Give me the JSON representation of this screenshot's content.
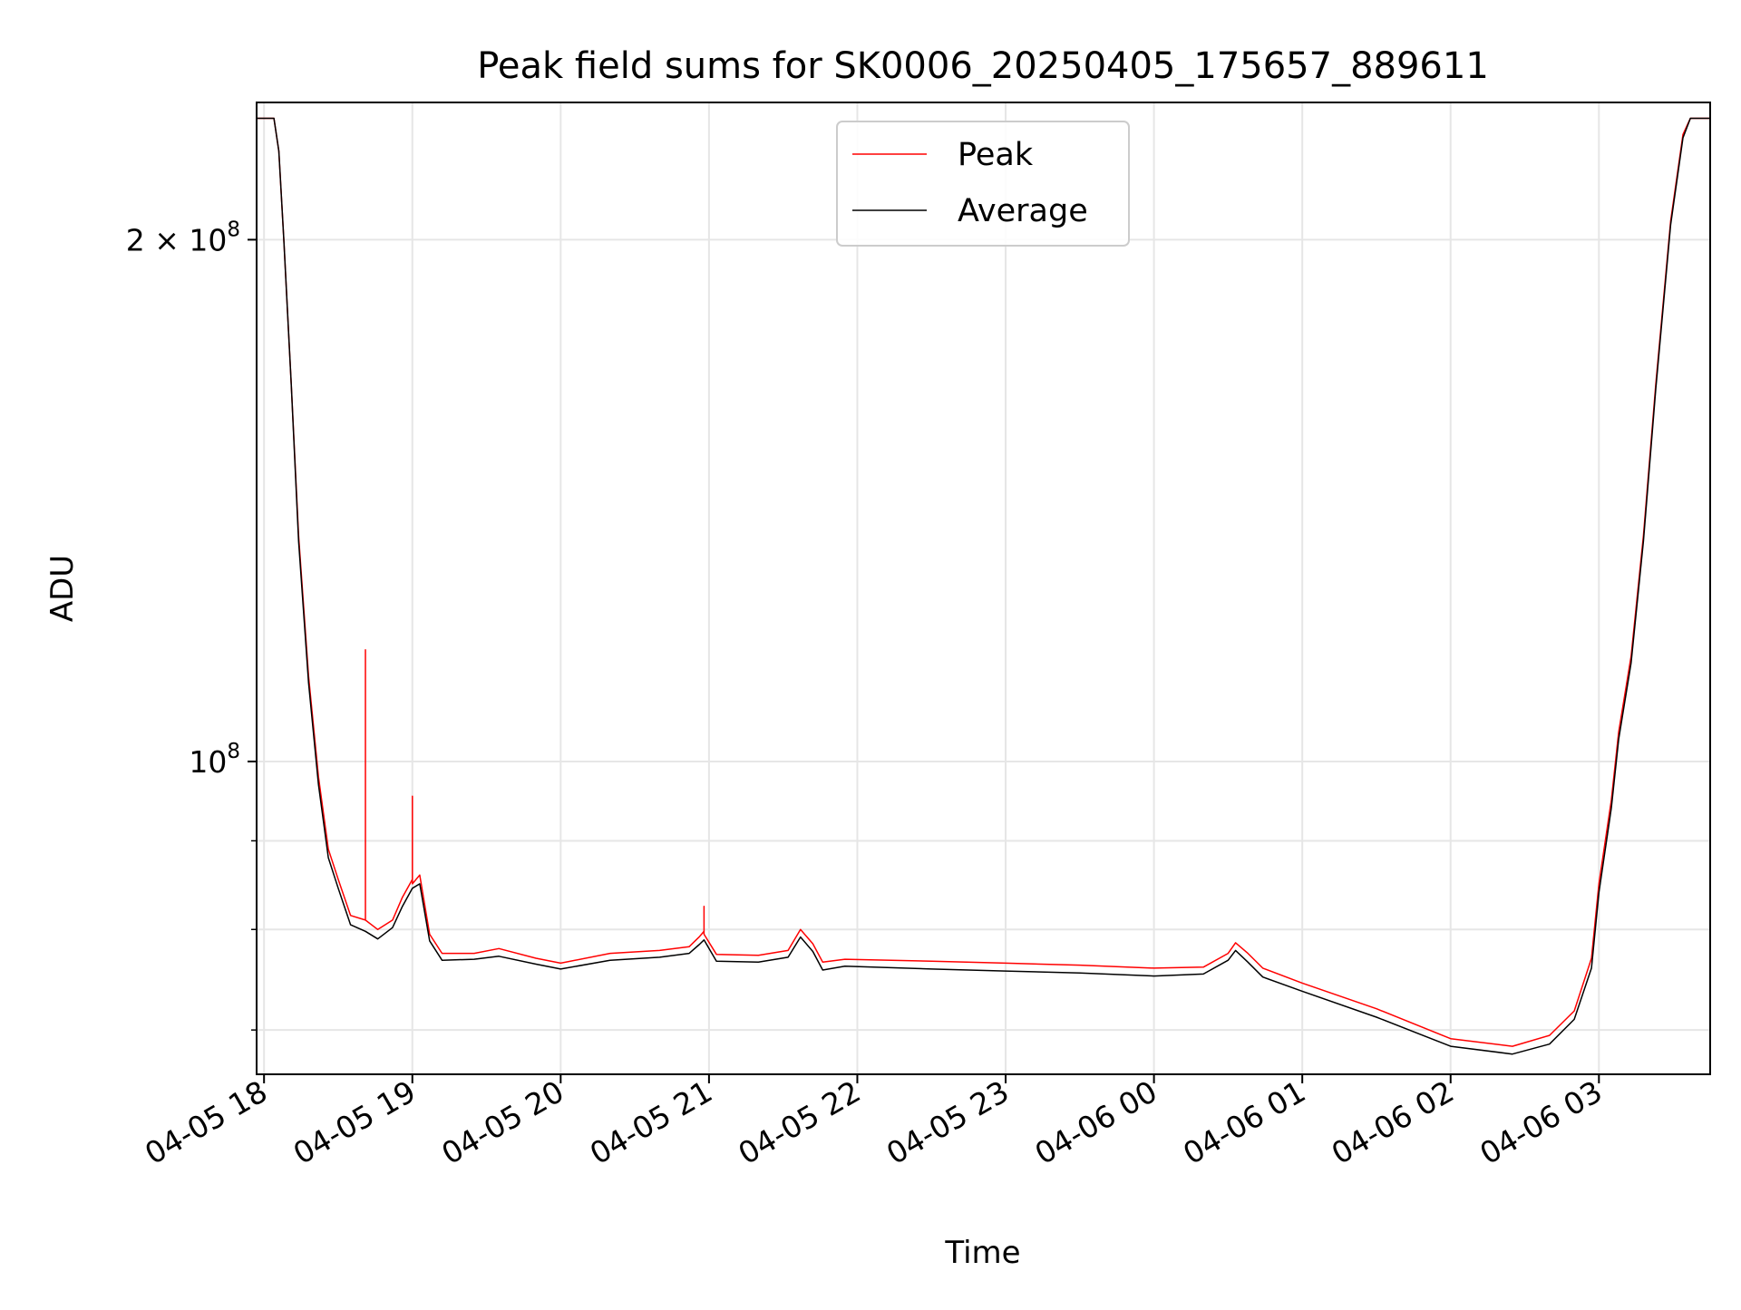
{
  "chart_data": {
    "type": "line",
    "title": "Peak field sums for SK0006_20250405_175657_889611",
    "xlabel": "Time",
    "ylabel": "ADU",
    "y_scale": "log",
    "grid": true,
    "legend_placement": "upper center",
    "xlim": [
      "2025-04-05 17:57",
      "2025-04-06 03:45"
    ],
    "ylim": [
      66000000,
      240000000
    ],
    "x_ticks": [
      {
        "t": "2025-04-05 18:00",
        "label": "04-05 18"
      },
      {
        "t": "2025-04-05 19:00",
        "label": "04-05 19"
      },
      {
        "t": "2025-04-05 20:00",
        "label": "04-05 20"
      },
      {
        "t": "2025-04-05 21:00",
        "label": "04-05 21"
      },
      {
        "t": "2025-04-05 22:00",
        "label": "04-05 22"
      },
      {
        "t": "2025-04-05 23:00",
        "label": "04-05 23"
      },
      {
        "t": "2025-04-06 00:00",
        "label": "04-06 00"
      },
      {
        "t": "2025-04-06 01:00",
        "label": "04-06 01"
      },
      {
        "t": "2025-04-06 02:00",
        "label": "04-06 02"
      },
      {
        "t": "2025-04-06 03:00",
        "label": "04-06 03"
      }
    ],
    "y_ticks": [
      {
        "value": 100000000,
        "label_base": "10",
        "label_exp": "8"
      },
      {
        "value": 200000000,
        "label_base": "2 × 10",
        "label_exp": "8"
      }
    ],
    "y_minor_ticks": [
      70000000,
      80000000,
      90000000
    ],
    "series": [
      {
        "name": "Peak",
        "color": "#ff0000",
        "points": [
          [
            "2025-04-05 17:57",
            235000000
          ],
          [
            "2025-04-05 18:04",
            235000000
          ],
          [
            "2025-04-05 18:06",
            225000000
          ],
          [
            "2025-04-05 18:08",
            200000000
          ],
          [
            "2025-04-05 18:11",
            165000000
          ],
          [
            "2025-04-05 18:14",
            135000000
          ],
          [
            "2025-04-05 18:18",
            112000000
          ],
          [
            "2025-04-05 18:22",
            98000000
          ],
          [
            "2025-04-05 18:26",
            89000000
          ],
          [
            "2025-04-05 18:30",
            85500000
          ],
          [
            "2025-04-05 18:35",
            81500000
          ],
          [
            "2025-04-05 18:41",
            81000000
          ],
          [
            "2025-04-05 18:41",
            116000000
          ],
          [
            "2025-04-05 18:41",
            81000000
          ],
          [
            "2025-04-05 18:46",
            80000000
          ],
          [
            "2025-04-05 18:52",
            81000000
          ],
          [
            "2025-04-05 18:56",
            83500000
          ],
          [
            "2025-04-05 19:00",
            85500000
          ],
          [
            "2025-04-05 19:00",
            95500000
          ],
          [
            "2025-04-05 19:00",
            85000000
          ],
          [
            "2025-04-05 19:03",
            86000000
          ],
          [
            "2025-04-05 19:07",
            79500000
          ],
          [
            "2025-04-05 19:12",
            77500000
          ],
          [
            "2025-04-05 19:25",
            77500000
          ],
          [
            "2025-04-05 19:35",
            78000000
          ],
          [
            "2025-04-05 19:50",
            77000000
          ],
          [
            "2025-04-05 20:00",
            76500000
          ],
          [
            "2025-04-05 20:20",
            77500000
          ],
          [
            "2025-04-05 20:40",
            77800000
          ],
          [
            "2025-04-05 20:52",
            78200000
          ],
          [
            "2025-04-05 20:56",
            79200000
          ],
          [
            "2025-04-05 20:58",
            79800000
          ],
          [
            "2025-04-05 20:58",
            82500000
          ],
          [
            "2025-04-05 20:58",
            79500000
          ],
          [
            "2025-04-05 21:03",
            77400000
          ],
          [
            "2025-04-05 21:20",
            77300000
          ],
          [
            "2025-04-05 21:32",
            77800000
          ],
          [
            "2025-04-05 21:37",
            80000000
          ],
          [
            "2025-04-05 21:42",
            78500000
          ],
          [
            "2025-04-05 21:46",
            76600000
          ],
          [
            "2025-04-05 21:55",
            76900000
          ],
          [
            "2025-04-05 22:30",
            76700000
          ],
          [
            "2025-04-05 23:00",
            76500000
          ],
          [
            "2025-04-05 23:30",
            76300000
          ],
          [
            "2025-04-06 00:00",
            76000000
          ],
          [
            "2025-04-06 00:20",
            76100000
          ],
          [
            "2025-04-06 00:30",
            77500000
          ],
          [
            "2025-04-06 00:33",
            78600000
          ],
          [
            "2025-04-06 00:38",
            77500000
          ],
          [
            "2025-04-06 00:44",
            76000000
          ],
          [
            "2025-04-06 01:00",
            74500000
          ],
          [
            "2025-04-06 01:30",
            72000000
          ],
          [
            "2025-04-06 02:00",
            69200000
          ],
          [
            "2025-04-06 02:25",
            68500000
          ],
          [
            "2025-04-06 02:40",
            69500000
          ],
          [
            "2025-04-06 02:50",
            71800000
          ],
          [
            "2025-04-06 02:57",
            77000000
          ],
          [
            "2025-04-06 03:00",
            85000000
          ],
          [
            "2025-04-06 03:05",
            95000000
          ],
          [
            "2025-04-06 03:08",
            104000000
          ],
          [
            "2025-04-06 03:13",
            115000000
          ],
          [
            "2025-04-06 03:18",
            135000000
          ],
          [
            "2025-04-06 03:23",
            165000000
          ],
          [
            "2025-04-06 03:29",
            205000000
          ],
          [
            "2025-04-06 03:34",
            230000000
          ],
          [
            "2025-04-06 03:37",
            235000000
          ],
          [
            "2025-04-06 03:45",
            235000000
          ]
        ]
      },
      {
        "name": "Average",
        "color": "#000000",
        "points": [
          [
            "2025-04-05 17:57",
            235000000
          ],
          [
            "2025-04-05 18:04",
            235000000
          ],
          [
            "2025-04-05 18:06",
            225000000
          ],
          [
            "2025-04-05 18:08",
            200000000
          ],
          [
            "2025-04-05 18:11",
            165000000
          ],
          [
            "2025-04-05 18:14",
            134000000
          ],
          [
            "2025-04-05 18:18",
            111000000
          ],
          [
            "2025-04-05 18:22",
            97000000
          ],
          [
            "2025-04-05 18:26",
            88000000
          ],
          [
            "2025-04-05 18:30",
            84500000
          ],
          [
            "2025-04-05 18:35",
            80500000
          ],
          [
            "2025-04-05 18:41",
            79800000
          ],
          [
            "2025-04-05 18:46",
            79000000
          ],
          [
            "2025-04-05 18:52",
            80200000
          ],
          [
            "2025-04-05 18:56",
            82500000
          ],
          [
            "2025-04-05 19:00",
            84500000
          ],
          [
            "2025-04-05 19:03",
            85000000
          ],
          [
            "2025-04-05 19:07",
            78800000
          ],
          [
            "2025-04-05 19:12",
            76800000
          ],
          [
            "2025-04-05 19:25",
            76900000
          ],
          [
            "2025-04-05 19:35",
            77200000
          ],
          [
            "2025-04-05 19:50",
            76400000
          ],
          [
            "2025-04-05 20:00",
            75900000
          ],
          [
            "2025-04-05 20:20",
            76800000
          ],
          [
            "2025-04-05 20:40",
            77100000
          ],
          [
            "2025-04-05 20:52",
            77500000
          ],
          [
            "2025-04-05 20:56",
            78400000
          ],
          [
            "2025-04-05 20:58",
            78900000
          ],
          [
            "2025-04-05 21:03",
            76700000
          ],
          [
            "2025-04-05 21:20",
            76600000
          ],
          [
            "2025-04-05 21:32",
            77100000
          ],
          [
            "2025-04-05 21:37",
            79200000
          ],
          [
            "2025-04-05 21:42",
            77700000
          ],
          [
            "2025-04-05 21:46",
            75800000
          ],
          [
            "2025-04-05 21:55",
            76200000
          ],
          [
            "2025-04-05 22:30",
            75900000
          ],
          [
            "2025-04-05 23:00",
            75700000
          ],
          [
            "2025-04-05 23:30",
            75500000
          ],
          [
            "2025-04-06 00:00",
            75200000
          ],
          [
            "2025-04-06 00:20",
            75400000
          ],
          [
            "2025-04-06 00:30",
            76800000
          ],
          [
            "2025-04-06 00:33",
            77800000
          ],
          [
            "2025-04-06 00:38",
            76600000
          ],
          [
            "2025-04-06 00:44",
            75100000
          ],
          [
            "2025-04-06 01:00",
            73700000
          ],
          [
            "2025-04-06 01:30",
            71200000
          ],
          [
            "2025-04-06 02:00",
            68500000
          ],
          [
            "2025-04-06 02:25",
            67800000
          ],
          [
            "2025-04-06 02:40",
            68700000
          ],
          [
            "2025-04-06 02:50",
            71000000
          ],
          [
            "2025-04-06 02:57",
            76000000
          ],
          [
            "2025-04-06 03:00",
            84000000
          ],
          [
            "2025-04-06 03:05",
            94000000
          ],
          [
            "2025-04-06 03:08",
            103000000
          ],
          [
            "2025-04-06 03:13",
            114000000
          ],
          [
            "2025-04-06 03:18",
            134000000
          ],
          [
            "2025-04-06 03:23",
            164000000
          ],
          [
            "2025-04-06 03:29",
            204000000
          ],
          [
            "2025-04-06 03:34",
            229000000
          ],
          [
            "2025-04-06 03:37",
            235000000
          ],
          [
            "2025-04-06 03:45",
            235000000
          ]
        ]
      }
    ]
  }
}
